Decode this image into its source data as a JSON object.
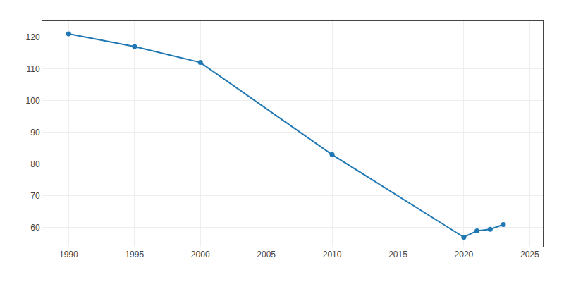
{
  "chart_data": {
    "type": "line",
    "x": [
      1990,
      1995,
      2000,
      2010,
      2020,
      2021,
      2022,
      2023
    ],
    "values": [
      121.0,
      117.0,
      112.0,
      83.0,
      57.0,
      59.0,
      59.5,
      61.0
    ],
    "marker": "circle",
    "xlim": [
      1988,
      2026
    ],
    "ylim": [
      54,
      125
    ],
    "xticks": [
      1990,
      1995,
      2000,
      2005,
      2010,
      2015,
      2020,
      2025
    ],
    "yticks": [
      60,
      70,
      80,
      90,
      100,
      110,
      120
    ],
    "grid": true
  }
}
